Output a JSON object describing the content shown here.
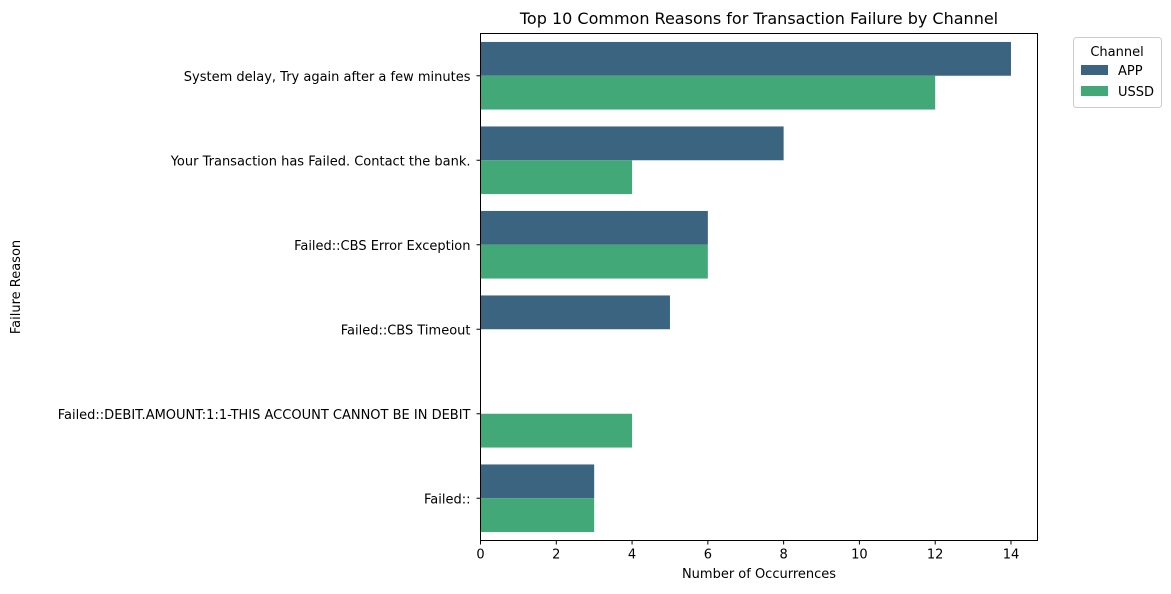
{
  "chart_data": {
    "type": "bar",
    "orientation": "horizontal",
    "title": "Top 10 Common Reasons for Transaction Failure by Channel",
    "xlabel": "Number of Occurrences",
    "ylabel": "Failure Reason",
    "xlim": [
      0,
      14.7
    ],
    "xticks": [
      0,
      2,
      4,
      6,
      8,
      10,
      12,
      14
    ],
    "grid": false,
    "categories": [
      "System delay, Try again after a few minutes",
      "Your Transaction has Failed. Contact the bank.",
      "Failed::CBS Error Exception",
      "Failed::CBS Timeout",
      "Failed::DEBIT.AMOUNT:1:1-THIS ACCOUNT CANNOT BE IN DEBIT",
      "Failed::"
    ],
    "series": [
      {
        "name": "APP",
        "color": "#3b6481",
        "values": [
          14,
          8,
          6,
          5,
          null,
          3
        ]
      },
      {
        "name": "USSD",
        "color": "#43a878",
        "values": [
          12,
          4,
          6,
          null,
          4,
          3
        ]
      }
    ],
    "legend": {
      "title": "Channel",
      "position": "outside-top-right"
    }
  }
}
